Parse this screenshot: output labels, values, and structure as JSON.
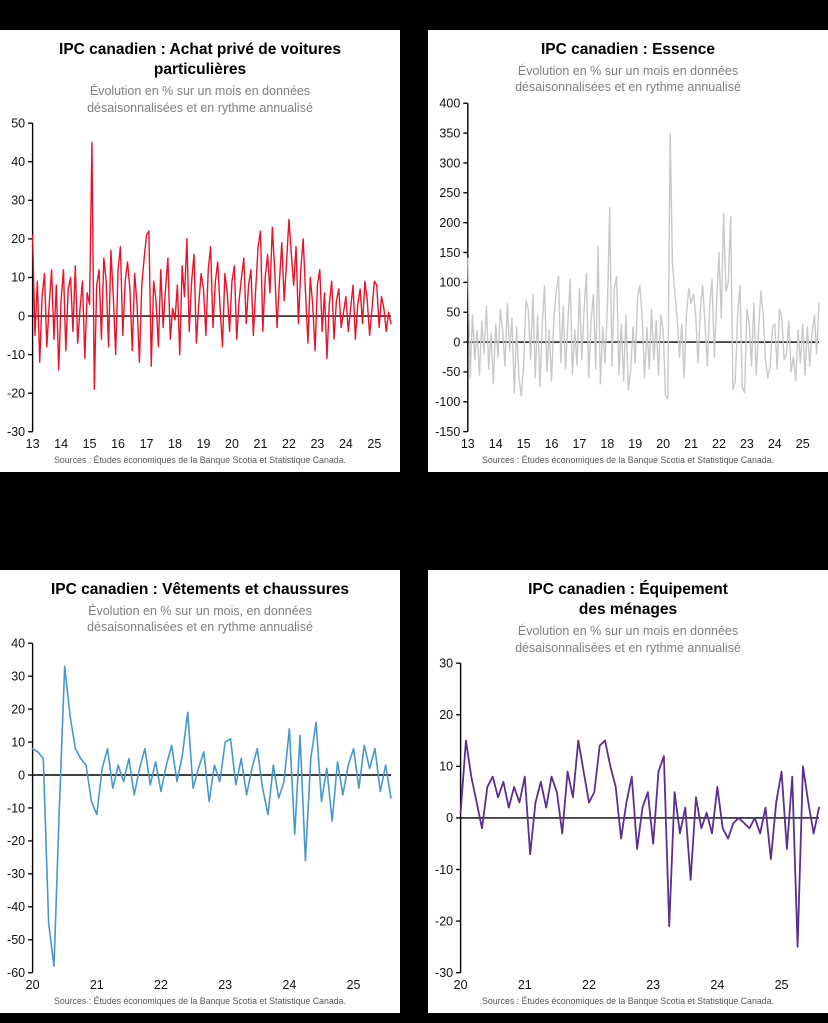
{
  "page": {
    "background_color": "#000000",
    "panel_color": "#ffffff"
  },
  "source_note": "Sources : Études économiques de la Banque Scotia et Statistique Canada.",
  "chart_data": [
    {
      "type": "line",
      "title": "IPC canadien : Achat privé de voitures particulières",
      "subtitle": "Évolution en % sur un mois en données désaisonnalisées et en rythme annualisé",
      "color": "#e8132b",
      "line_width": 1.4,
      "ylim": [
        -30,
        50
      ],
      "ytick_step": 10,
      "x_start": 2013,
      "xticks": [
        13,
        14,
        15,
        16,
        17,
        18,
        19,
        20,
        21,
        22,
        23,
        24,
        25
      ],
      "frequency": "monthly",
      "xlabel": "",
      "ylabel": "",
      "grid": false,
      "legend": "none",
      "values": [
        21,
        -5,
        9,
        -12,
        5,
        11,
        -8,
        3,
        12,
        -6,
        8,
        -14,
        4,
        12,
        -9,
        7,
        10,
        -4,
        13,
        -7,
        2,
        9,
        -11,
        6,
        3,
        45,
        -19,
        8,
        12,
        -6,
        15,
        9,
        -8,
        17,
        5,
        -10,
        12,
        18,
        -5,
        9,
        14,
        7,
        -9,
        11,
        3,
        -12,
        8,
        15,
        21,
        22,
        -13,
        9,
        4,
        -8,
        12,
        -3,
        7,
        15,
        -6,
        2,
        -1,
        8,
        -10,
        13,
        5,
        20,
        -4,
        9,
        16,
        -7,
        3,
        11,
        7,
        -5,
        12,
        18,
        -3,
        9,
        14,
        2,
        -8,
        11,
        6,
        -4,
        9,
        13,
        -6,
        4,
        10,
        15,
        -2,
        8,
        12,
        -5,
        7,
        18,
        22,
        -4,
        10,
        16,
        6,
        23,
        12,
        -3,
        9,
        19,
        4,
        14,
        25,
        16,
        8,
        18,
        -2,
        12,
        20,
        6,
        -7,
        10,
        3,
        -9,
        8,
        12,
        -4,
        6,
        -11,
        3,
        9,
        -6,
        4,
        7,
        -3,
        1,
        5,
        -4,
        2,
        8,
        -6,
        3,
        7,
        -2,
        9,
        4,
        -5,
        2,
        9,
        8,
        -3,
        5,
        2,
        -4,
        1,
        -2
      ]
    },
    {
      "type": "line",
      "title": "IPC canadien : Essence",
      "subtitle": "Évolution en % sur un mois en données désaisonnalisées et en rythme annualisé",
      "color": "#c9c9c9",
      "line_width": 1.4,
      "ylim": [
        -150,
        400
      ],
      "ytick_step": 50,
      "x_start": 2013,
      "xticks": [
        13,
        14,
        15,
        16,
        17,
        18,
        19,
        20,
        21,
        22,
        23,
        24,
        25
      ],
      "frequency": "monthly",
      "xlabel": "",
      "ylabel": "",
      "grid": false,
      "legend": "none",
      "values": [
        140,
        -60,
        45,
        -30,
        20,
        -55,
        35,
        -20,
        60,
        -45,
        15,
        -70,
        30,
        -25,
        55,
        20,
        -40,
        65,
        -15,
        40,
        -85,
        25,
        -60,
        -90,
        -40,
        70,
        55,
        -30,
        80,
        -60,
        45,
        -75,
        30,
        95,
        -50,
        20,
        -65,
        40,
        85,
        110,
        -35,
        60,
        -45,
        30,
        105,
        -55,
        20,
        -40,
        90,
        -30,
        55,
        115,
        -60,
        35,
        80,
        -45,
        160,
        -70,
        25,
        -35,
        55,
        225,
        -40,
        90,
        110,
        -55,
        30,
        -65,
        45,
        -80,
        -50,
        25,
        -35,
        75,
        95,
        40,
        -60,
        25,
        -45,
        55,
        -30,
        35,
        -55,
        45,
        20,
        -90,
        -95,
        350,
        130,
        85,
        40,
        -25,
        30,
        -60,
        45,
        90,
        65,
        80,
        45,
        -35,
        55,
        95,
        30,
        -40,
        60,
        105,
        -25,
        70,
        150,
        40,
        215,
        85,
        100,
        210,
        -80,
        -65,
        45,
        95,
        -75,
        -85,
        55,
        30,
        -40,
        65,
        -55,
        20,
        85,
        45,
        -30,
        -60,
        -40,
        25,
        30,
        -45,
        55,
        40,
        -30,
        -20,
        35,
        -50,
        -25,
        -65,
        20,
        -35,
        30,
        -55,
        25,
        -40,
        15,
        45,
        -20,
        65
      ]
    },
    {
      "type": "line",
      "title": "IPC canadien : Vêtements et chaussures",
      "subtitle": "Évolution en % sur un mois, en données désaisonnalisées et en rythme annualisé",
      "color": "#4a98cb",
      "line_width": 1.6,
      "ylim": [
        -60,
        40
      ],
      "ytick_step": 10,
      "x_start": 2020,
      "xticks": [
        20,
        21,
        22,
        23,
        24,
        25
      ],
      "frequency": "monthly",
      "xlabel": "",
      "ylabel": "",
      "grid": false,
      "legend": "none",
      "values": [
        8,
        7,
        5,
        -45,
        -58,
        -10,
        33,
        18,
        8,
        5,
        3,
        -8,
        -12,
        2,
        8,
        -4,
        3,
        -2,
        5,
        -6,
        2,
        8,
        -3,
        4,
        -5,
        3,
        9,
        -2,
        6,
        19,
        -4,
        2,
        7,
        -8,
        3,
        -2,
        10,
        11,
        -3,
        5,
        -6,
        2,
        8,
        -4,
        -12,
        3,
        -7,
        -2,
        14,
        -18,
        12,
        -26,
        5,
        16,
        -8,
        2,
        -14,
        4,
        -6,
        3,
        8,
        -4,
        9,
        2,
        8,
        -5,
        3,
        -7
      ]
    },
    {
      "type": "line",
      "title": "IPC canadien : Équipement des ménages",
      "subtitle": "Évolution en % sur un mois en données désaisonnalisées et en rythme annualisé",
      "color": "#5e2e91",
      "line_width": 1.8,
      "ylim": [
        -30,
        30
      ],
      "ytick_step": 10,
      "x_start": 2020,
      "xticks": [
        20,
        21,
        22,
        23,
        24,
        25
      ],
      "frequency": "monthly",
      "xlabel": "",
      "ylabel": "",
      "grid": false,
      "legend": "none",
      "values": [
        1,
        15,
        8,
        3,
        -2,
        6,
        8,
        4,
        7,
        2,
        6,
        3,
        8,
        -7,
        3,
        7,
        2,
        8,
        5,
        -3,
        9,
        4,
        15,
        9,
        3,
        5,
        14,
        15,
        10,
        6,
        -4,
        3,
        8,
        -6,
        2,
        5,
        -5,
        9,
        12,
        -21,
        5,
        -3,
        2,
        -12,
        4,
        -2,
        1,
        -3,
        6,
        -2,
        -4,
        -1,
        0,
        -1,
        -2,
        0,
        -3,
        2,
        -8,
        3,
        9,
        -6,
        8,
        -25,
        10,
        3,
        -3,
        2
      ]
    }
  ]
}
